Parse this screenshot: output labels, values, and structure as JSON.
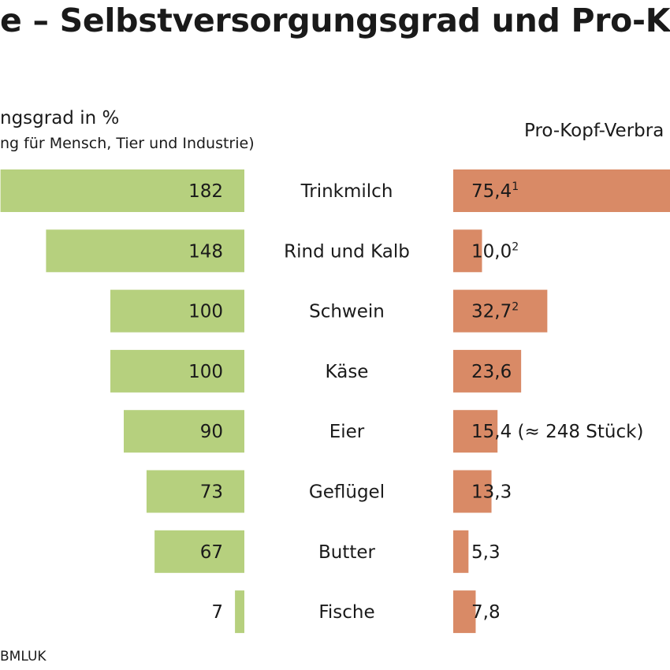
{
  "title": "e – Selbstversorgungsgrad und Pro-Kopf-V",
  "left_heading": "ngsgrad in %",
  "left_note": "ng für Mensch, Tier und Industrie)",
  "right_heading": "Pro-Kopf-Verbra",
  "source": "BMLUK",
  "colors": {
    "green": "#b6d07e",
    "orange": "#d98a66"
  },
  "chart_data": [
    {
      "type": "bar",
      "orientation": "horizontal",
      "categories": [
        "Trinkmilch",
        "Rind und Kalb",
        "Schwein",
        "Käse",
        "Eier",
        "Geflügel",
        "Butter",
        "Fische"
      ],
      "values": [
        182,
        148,
        100,
        100,
        90,
        73,
        67,
        7
      ],
      "labels": [
        "182",
        "148",
        "100",
        "100",
        "90",
        "73",
        "67",
        "7"
      ],
      "color": "#b6d07e"
    },
    {
      "type": "bar",
      "orientation": "horizontal",
      "categories": [
        "Trinkmilch",
        "Rind und Kalb",
        "Schwein",
        "Käse",
        "Eier",
        "Geflügel",
        "Butter",
        "Fische"
      ],
      "values": [
        75.4,
        10.0,
        32.7,
        23.6,
        15.4,
        13.3,
        5.3,
        7.8
      ],
      "labels": [
        "75,4",
        "10,0",
        "32,7",
        "23,6",
        "15,4 (≈ 248 Stück)",
        "13,3",
        "5,3",
        "7,8"
      ],
      "footnotes": [
        "1",
        "2",
        "2",
        "",
        "",
        "",
        "",
        ""
      ],
      "color": "#d98a66"
    }
  ]
}
